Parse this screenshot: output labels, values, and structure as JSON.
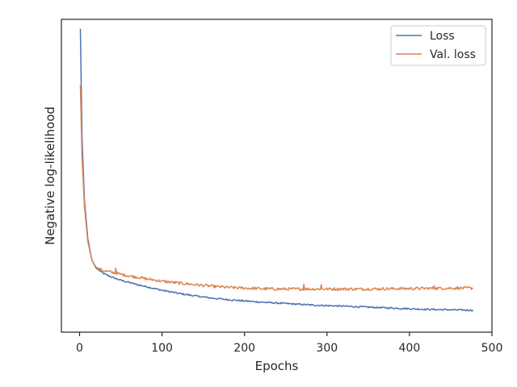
{
  "chart_data": {
    "type": "line",
    "title": "",
    "xlabel": "Epochs",
    "ylabel": "Negative log-likelihood",
    "xlim": [
      -22,
      500
    ],
    "ylim": [
      0,
      1
    ],
    "xticks": [
      0,
      100,
      200,
      300,
      400,
      500
    ],
    "yticks_shown": false,
    "grid": false,
    "legend": "top-right",
    "series": [
      {
        "name": "Loss",
        "color": "#4c72b0",
        "points": [
          [
            1,
            0.97
          ],
          [
            3,
            0.62
          ],
          [
            6,
            0.42
          ],
          [
            10,
            0.3
          ],
          [
            15,
            0.23
          ],
          [
            20,
            0.205
          ],
          [
            25,
            0.195
          ],
          [
            30,
            0.186
          ],
          [
            40,
            0.175
          ],
          [
            50,
            0.166
          ],
          [
            60,
            0.159
          ],
          [
            70,
            0.152
          ],
          [
            80,
            0.146
          ],
          [
            100,
            0.134
          ],
          [
            120,
            0.124
          ],
          [
            140,
            0.116
          ],
          [
            160,
            0.109
          ],
          [
            180,
            0.104
          ],
          [
            200,
            0.1
          ],
          [
            220,
            0.096
          ],
          [
            240,
            0.093
          ],
          [
            260,
            0.09
          ],
          [
            280,
            0.087
          ],
          [
            300,
            0.085
          ],
          [
            320,
            0.083
          ],
          [
            340,
            0.081
          ],
          [
            360,
            0.079
          ],
          [
            380,
            0.077
          ],
          [
            400,
            0.075
          ],
          [
            420,
            0.073
          ],
          [
            440,
            0.072
          ],
          [
            460,
            0.071
          ],
          [
            477,
            0.07
          ]
        ],
        "noise": 0.0025
      },
      {
        "name": "Val. loss",
        "color": "#dd8452",
        "points": [
          [
            1,
            0.79
          ],
          [
            3,
            0.56
          ],
          [
            6,
            0.4
          ],
          [
            10,
            0.29
          ],
          [
            15,
            0.23
          ],
          [
            20,
            0.208
          ],
          [
            25,
            0.2
          ],
          [
            30,
            0.196
          ],
          [
            40,
            0.191
          ],
          [
            50,
            0.185
          ],
          [
            60,
            0.18
          ],
          [
            70,
            0.176
          ],
          [
            80,
            0.171
          ],
          [
            100,
            0.163
          ],
          [
            120,
            0.157
          ],
          [
            140,
            0.152
          ],
          [
            160,
            0.147
          ],
          [
            180,
            0.143
          ],
          [
            200,
            0.141
          ],
          [
            220,
            0.139
          ],
          [
            240,
            0.138
          ],
          [
            260,
            0.138
          ],
          [
            280,
            0.138
          ],
          [
            300,
            0.138
          ],
          [
            340,
            0.138
          ],
          [
            380,
            0.139
          ],
          [
            420,
            0.14
          ],
          [
            460,
            0.141
          ],
          [
            477,
            0.141
          ]
        ],
        "noise": 0.0045,
        "spikes": [
          [
            44,
            0.205
          ],
          [
            272,
            0.153
          ],
          [
            293,
            0.152
          ],
          [
            430,
            0.148
          ]
        ]
      }
    ]
  }
}
